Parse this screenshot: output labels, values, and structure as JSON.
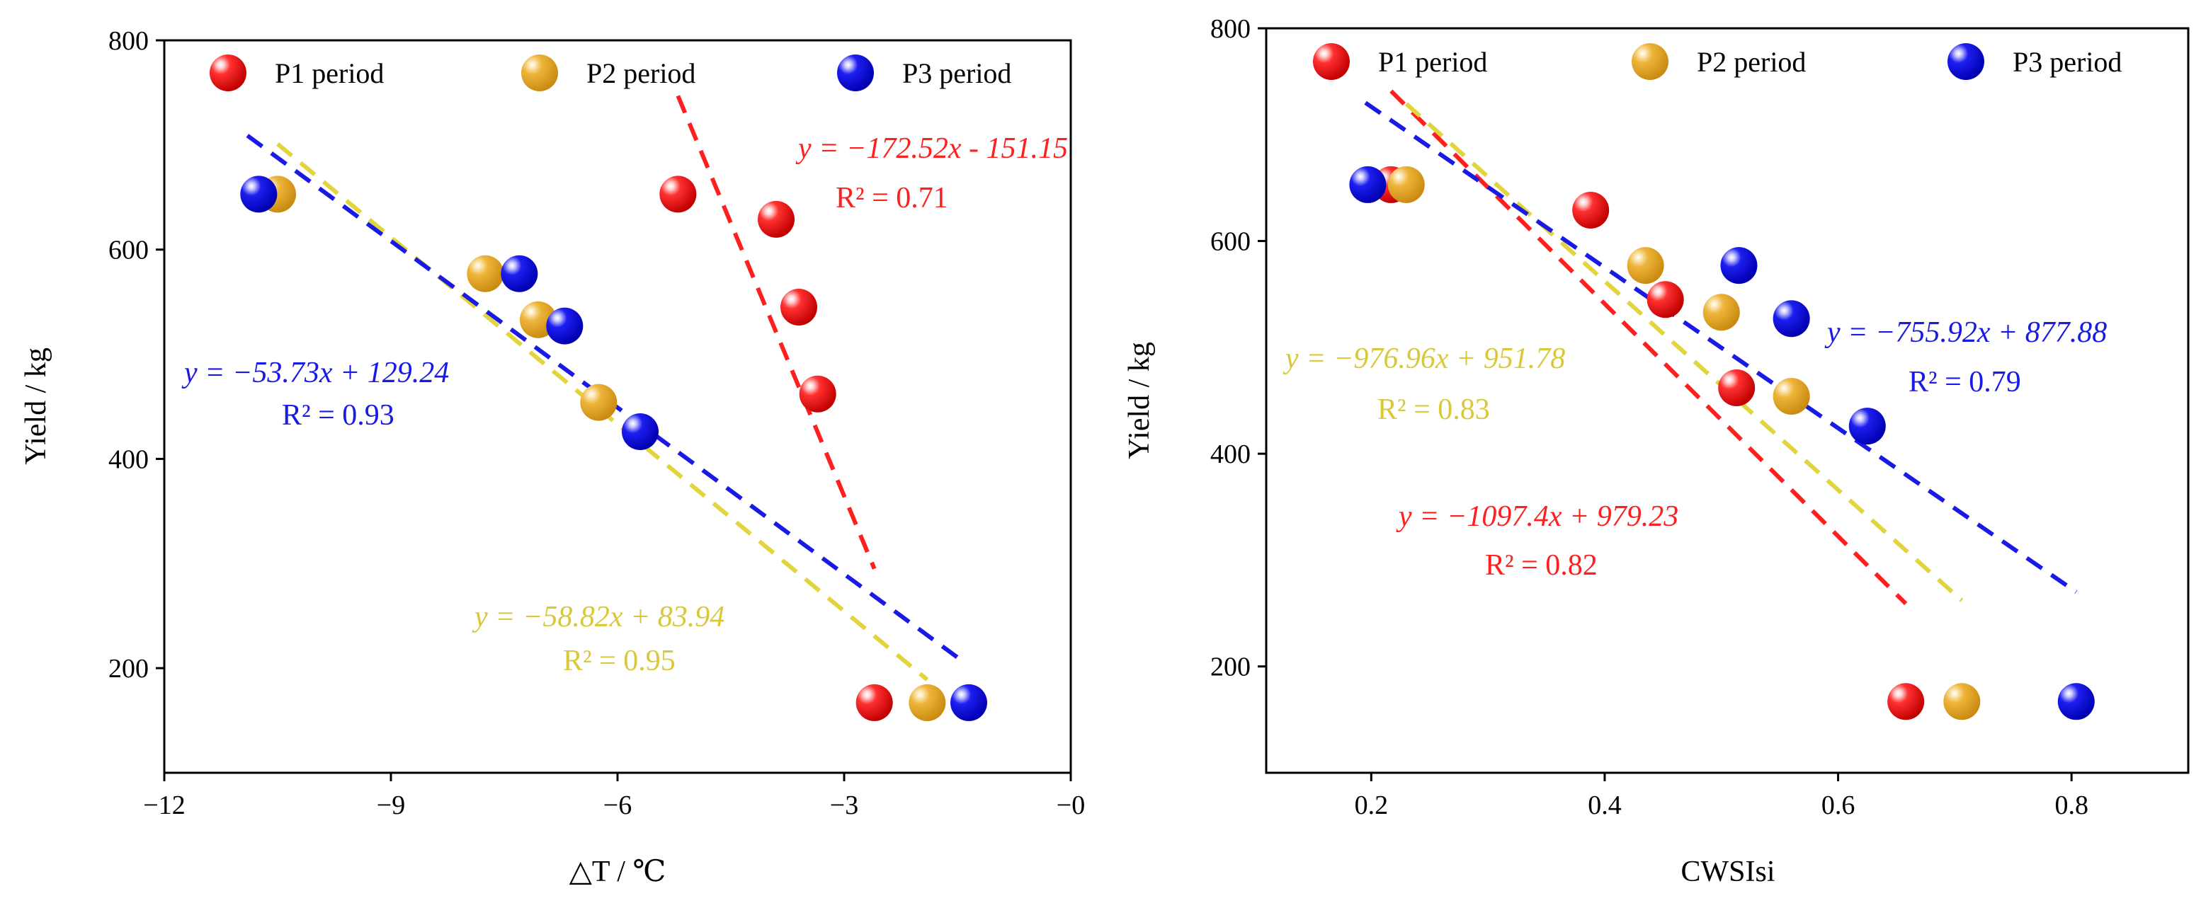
{
  "colors": {
    "P1": "#ee1c1c",
    "P2": "#e9b43a",
    "P3": "#1212e6",
    "P1_line": "#ff1f1f",
    "P2_line": "#e2d43c",
    "P3_line": "#1a1ae6"
  },
  "chart_data": [
    {
      "type": "scatter",
      "title": "",
      "xlabel": "△T / ℃",
      "ylabel": "Yield / kg",
      "xlim": [
        -12,
        0
      ],
      "ylim": [
        100,
        800
      ],
      "xticks": [
        -12,
        -9,
        -6,
        -3,
        0
      ],
      "xtick_labels": [
        "−12",
        "−9",
        "−6",
        "−3",
        "−0"
      ],
      "yticks": [
        200,
        400,
        600,
        800
      ],
      "ytick_labels": [
        "200",
        "400",
        "600",
        "800"
      ],
      "legend": [
        {
          "key": "P1",
          "label": "P1 period"
        },
        {
          "key": "P2",
          "label": "P2 period"
        },
        {
          "key": "P3",
          "label": "P3 period"
        }
      ],
      "series": [
        {
          "name": "P1 period",
          "key": "P1",
          "x": [
            -5.2,
            -3.9,
            -3.6,
            -3.35,
            -2.6
          ],
          "y": [
            653,
            629,
            545,
            462,
            167
          ]
        },
        {
          "name": "P2 period",
          "key": "P2",
          "x": [
            -10.5,
            -7.75,
            -7.05,
            -6.25,
            -1.9
          ],
          "y": [
            653,
            577,
            533,
            454,
            167
          ]
        },
        {
          "name": "P3 period",
          "key": "P3",
          "x": [
            -10.75,
            -7.3,
            -6.7,
            -5.7,
            -1.35
          ],
          "y": [
            653,
            577,
            527,
            426,
            167
          ]
        }
      ],
      "fits": [
        {
          "key": "P1",
          "x": [
            -5.2,
            -2.6
          ],
          "y": [
            747,
            295
          ]
        },
        {
          "key": "P2",
          "x": [
            -10.5,
            -1.9
          ],
          "y": [
            701,
            189
          ]
        },
        {
          "key": "P3",
          "x": [
            -10.9,
            -1.4
          ],
          "y": [
            709,
            205
          ]
        }
      ],
      "annotations": [
        {
          "key": "P1",
          "equation": "y = −172.52x - 151.15",
          "r2": "R² = 0.71"
        },
        {
          "key": "P3",
          "equation": "y = −53.73x + 129.24",
          "r2": "R² = 0.93"
        },
        {
          "key": "P2",
          "equation": "y = −58.82x + 83.94",
          "r2": "R² = 0.95"
        }
      ]
    },
    {
      "type": "scatter",
      "title": "",
      "xlabel": "CWSIsi",
      "ylabel": "Yield / kg",
      "xlim": [
        0.11,
        0.9
      ],
      "ylim": [
        100,
        800
      ],
      "xticks": [
        0.2,
        0.4,
        0.6,
        0.8
      ],
      "xtick_labels": [
        "0.2",
        "0.4",
        "0.6",
        "0.8"
      ],
      "yticks": [
        200,
        400,
        600,
        800
      ],
      "ytick_labels": [
        "200",
        "400",
        "600",
        "800"
      ],
      "legend": [
        {
          "key": "P1",
          "label": "P1 period"
        },
        {
          "key": "P2",
          "label": "P2 period"
        },
        {
          "key": "P3",
          "label": "P3 period"
        }
      ],
      "series": [
        {
          "name": "P1 period",
          "key": "P1",
          "x": [
            0.217,
            0.388,
            0.452,
            0.513,
            0.658
          ],
          "y": [
            653,
            629,
            545,
            462,
            167
          ]
        },
        {
          "name": "P2 period",
          "key": "P2",
          "x": [
            0.23,
            0.435,
            0.5,
            0.56,
            0.706
          ],
          "y": [
            653,
            577,
            533,
            454,
            167
          ]
        },
        {
          "name": "P3 period",
          "key": "P3",
          "x": [
            0.197,
            0.515,
            0.56,
            0.625,
            0.804
          ],
          "y": [
            653,
            577,
            527,
            426,
            167
          ]
        }
      ],
      "fits": [
        {
          "key": "P1",
          "x": [
            0.217,
            0.658
          ],
          "y": [
            741,
            259
          ]
        },
        {
          "key": "P2",
          "x": [
            0.23,
            0.706
          ],
          "y": [
            729,
            262
          ]
        },
        {
          "key": "P3",
          "x": [
            0.195,
            0.804
          ],
          "y": [
            730,
            270
          ]
        }
      ],
      "annotations": [
        {
          "key": "P2",
          "equation": "y = −976.96x + 951.78",
          "r2": "R² = 0.83"
        },
        {
          "key": "P3",
          "equation": "y = −755.92x + 877.88",
          "r2": "R² = 0.79"
        },
        {
          "key": "P1",
          "equation": "y = −1097.4x + 979.23",
          "r2": "R² = 0.82"
        }
      ]
    }
  ]
}
